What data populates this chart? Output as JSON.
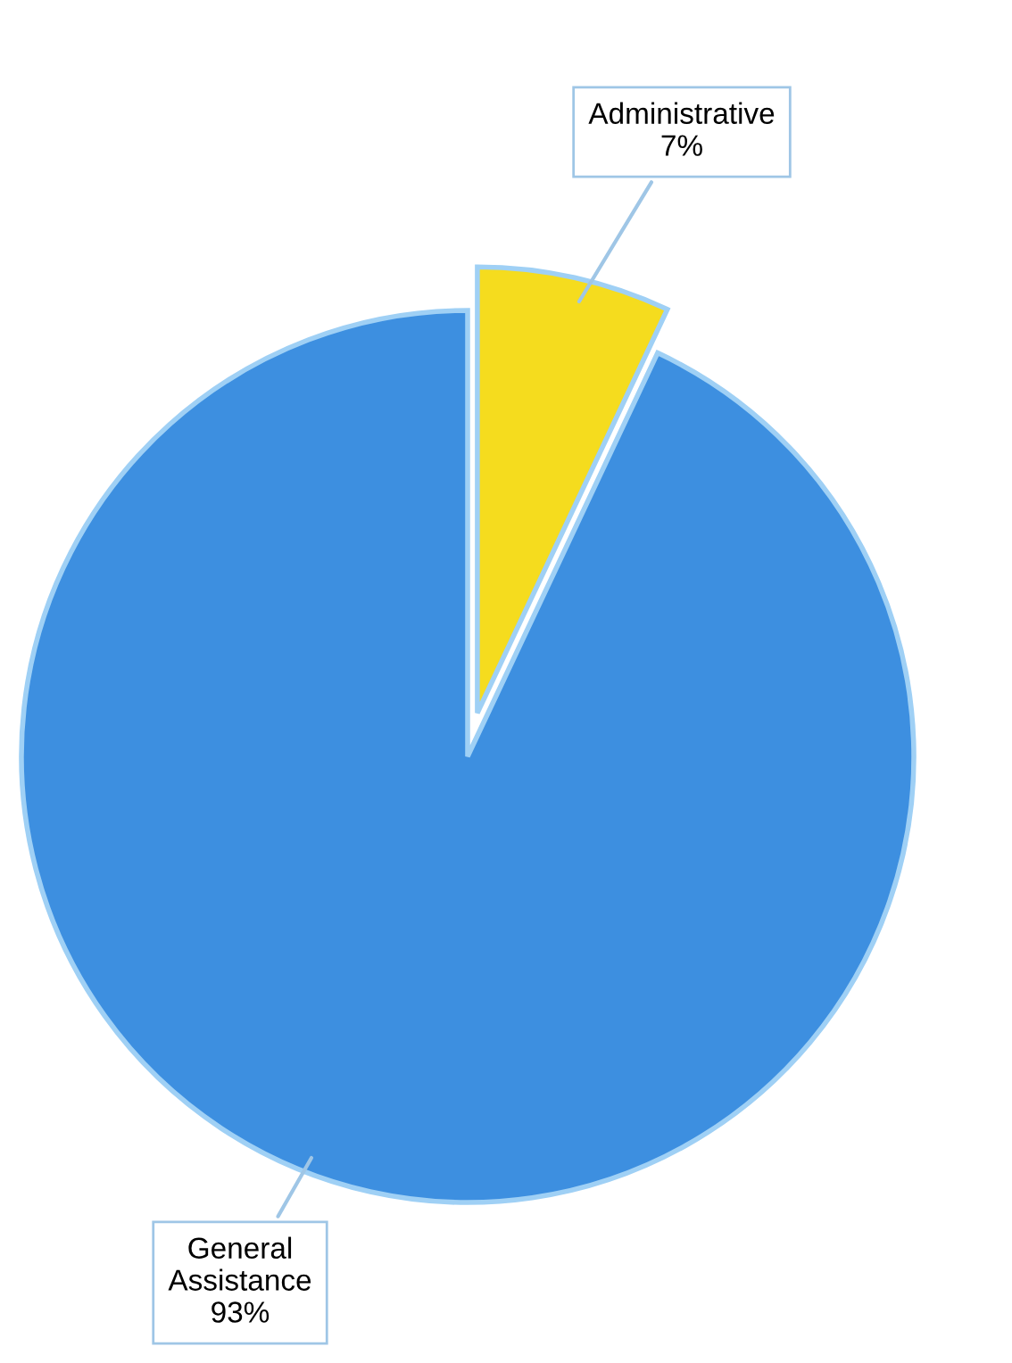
{
  "chart_data": {
    "type": "pie",
    "categories": [
      "Administrative",
      "General Assistance"
    ],
    "values": [
      7,
      93
    ],
    "value_labels": [
      "7%",
      "93%"
    ],
    "colors": [
      "#f5dc1e",
      "#3d8fe0"
    ]
  }
}
